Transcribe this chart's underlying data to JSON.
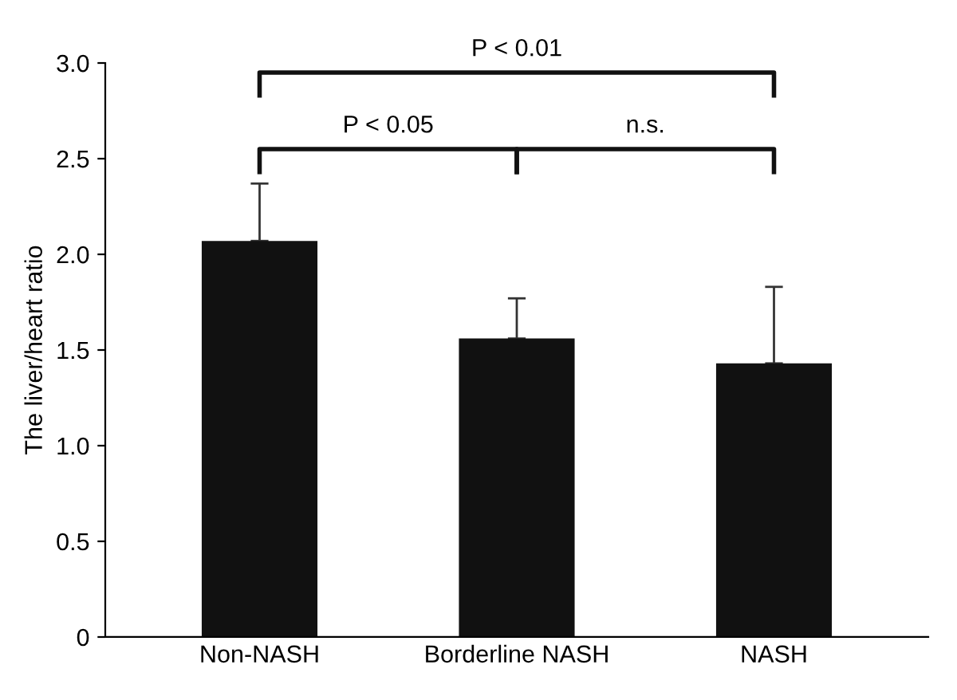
{
  "chart_data": {
    "type": "bar",
    "ylabel": "The liver/heart ratio",
    "categories": [
      "Non-NASH",
      "Borderline NASH",
      "NASH"
    ],
    "values": [
      2.07,
      1.56,
      1.43
    ],
    "color": "#111111",
    "errors": [
      [
        2.07,
        2.37
      ],
      [
        1.56,
        1.77
      ],
      [
        1.43,
        1.83
      ]
    ],
    "ylim": [
      0,
      3.0
    ],
    "yticks": [
      0,
      {
        "value": 0.5,
        "label": "0.5"
      },
      {
        "value": 1.0,
        "label": "1.0"
      },
      {
        "value": 1.5,
        "label": "1.5"
      },
      {
        "value": 2.0,
        "label": "2.0"
      },
      {
        "value": 2.5,
        "label": "2.5"
      },
      {
        "value": 3.0,
        "label": "3.0"
      }
    ],
    "grid": false,
    "legend": false,
    "annotations": [
      "P < 0.05",
      "n.s.",
      "P < 0.01"
    ]
  }
}
